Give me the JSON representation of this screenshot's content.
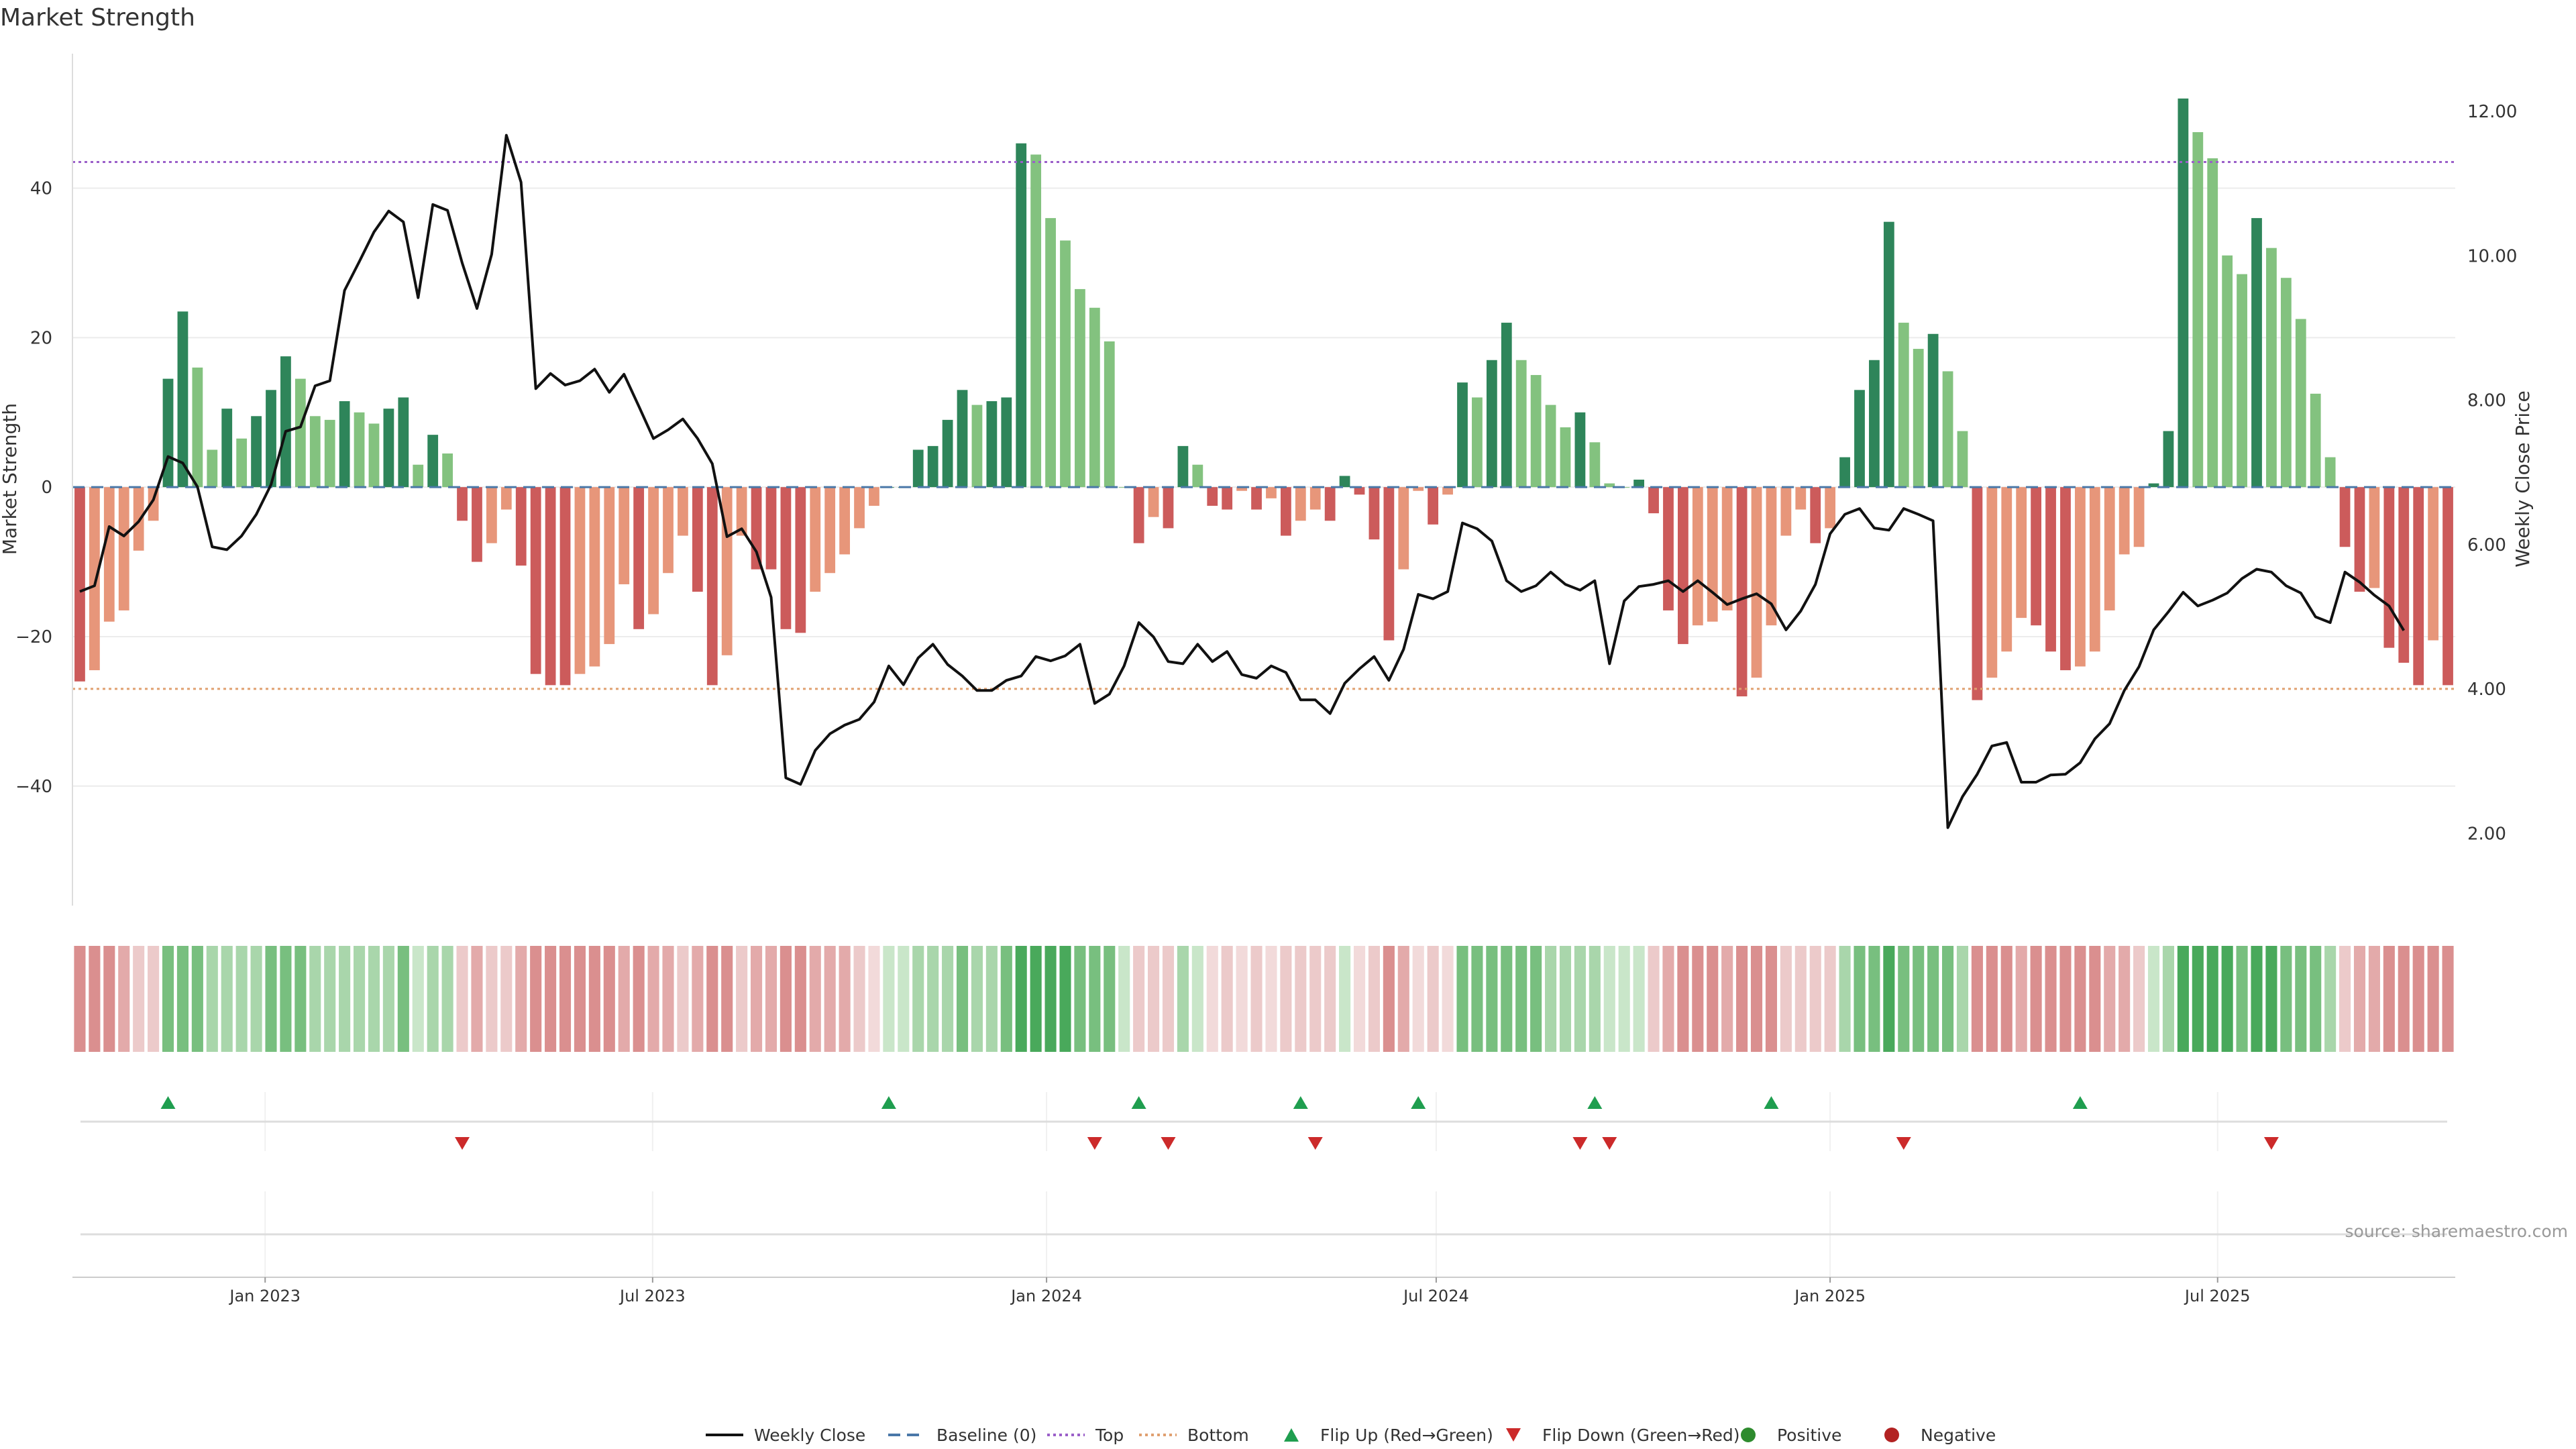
{
  "chart_data": {
    "type": "bar",
    "title": "Market Strength",
    "ylabel": "Market Strength",
    "y2label": "Weekly Close Price",
    "ylim": [
      -56,
      58
    ],
    "y2lim": [
      1.0,
      12.8
    ],
    "yticks": [
      -40,
      -20,
      0,
      20,
      40
    ],
    "y2ticks": [
      "2.00",
      "4.00",
      "6.00",
      "8.00",
      "10.00",
      "12.00"
    ],
    "x_start": "2022-10-03",
    "x_end": "2025-10-20",
    "x_tick_labels": [
      {
        "label": "Jan 2023",
        "date": "2023-01-01"
      },
      {
        "label": "Jul 2023",
        "date": "2023-07-01"
      },
      {
        "label": "Jan 2024",
        "date": "2024-01-01"
      },
      {
        "label": "Jul 2024",
        "date": "2024-07-01"
      },
      {
        "label": "Jan 2025",
        "date": "2025-01-01"
      },
      {
        "label": "Jul 2025",
        "date": "2025-07-01"
      }
    ],
    "top_level": 43.5,
    "bottom_level": -27,
    "strength_values": [
      -26,
      -24.5,
      -18,
      -16.5,
      -8.5,
      -4.5,
      14.5,
      23.5,
      16,
      5,
      10.5,
      6.5,
      9.5,
      13,
      17.5,
      14.5,
      9.5,
      9,
      11.5,
      10,
      8.5,
      10.5,
      12,
      3,
      7,
      4.5,
      -4.5,
      -10,
      -7.5,
      -3,
      -10.5,
      -25,
      -26.5,
      -26.5,
      -25,
      -24,
      -21,
      -13,
      -19,
      -17,
      -11.5,
      -6.5,
      -14,
      -26.5,
      -22.5,
      -6.5,
      -11,
      -11,
      -19,
      -19.5,
      -14,
      -11.5,
      -9,
      -5.5,
      -2.5,
      0,
      0,
      5,
      5.5,
      9,
      13,
      11,
      11.5,
      12,
      46,
      44.5,
      36,
      33,
      26.5,
      24,
      19.5,
      0,
      -7.5,
      -4,
      -5.5,
      5.5,
      3,
      -2.5,
      -3,
      -0.5,
      -3,
      -1.5,
      -6.5,
      -4.5,
      -3,
      -4.5,
      1.5,
      -1,
      -7,
      -20.5,
      -11,
      -0.5,
      -5,
      -1,
      14,
      12,
      17,
      22,
      17,
      15,
      11,
      8,
      10,
      6,
      0.5,
      0,
      1,
      -3.5,
      -16.5,
      -21,
      -18.5,
      -18,
      -16.5,
      -28,
      -25.5,
      -18.5,
      -6.5,
      -3,
      -7.5,
      -5.5,
      4,
      13,
      17,
      35.5,
      22,
      18.5,
      20.5,
      15.5,
      7.5,
      -28.5,
      -25.5,
      -22,
      -17.5,
      -18.5,
      -22,
      -24.5,
      -24,
      -22,
      -16.5,
      -9,
      -8,
      0.5,
      7.5,
      52,
      47.5,
      44,
      31,
      28.5,
      36,
      32,
      28,
      22.5,
      12.5,
      4,
      -8,
      -14,
      -13.5,
      -21.5,
      -23.5,
      -26.5,
      -20.5,
      -26.5
    ],
    "price_values": [
      5.35,
      5.43,
      6.25,
      6.12,
      6.32,
      6.62,
      7.22,
      7.13,
      6.8,
      5.97,
      5.93,
      6.12,
      6.42,
      6.83,
      7.57,
      7.63,
      8.2,
      8.27,
      9.52,
      9.92,
      10.33,
      10.62,
      10.47,
      9.42,
      10.71,
      10.63,
      9.9,
      9.27,
      10.02,
      11.67,
      11.02,
      8.16,
      8.37,
      8.21,
      8.27,
      8.43,
      8.11,
      8.36,
      7.92,
      7.47,
      7.59,
      7.74,
      7.47,
      7.12,
      6.11,
      6.22,
      5.9,
      5.27,
      2.77,
      2.68,
      3.15,
      3.38,
      3.5,
      3.58,
      3.82,
      4.32,
      4.06,
      4.43,
      4.62,
      4.34,
      4.18,
      3.98,
      3.98,
      4.12,
      4.18,
      4.45,
      4.39,
      4.46,
      4.62,
      3.8,
      3.93,
      4.32,
      4.92,
      4.72,
      4.38,
      4.35,
      4.62,
      4.38,
      4.52,
      4.2,
      4.15,
      4.32,
      4.23,
      3.85,
      3.85,
      3.66,
      4.08,
      4.28,
      4.45,
      4.12,
      4.55,
      5.31,
      5.25,
      5.35,
      6.3,
      6.22,
      6.05,
      5.5,
      5.35,
      5.43,
      5.62,
      5.45,
      5.37,
      5.5,
      4.35,
      5.22,
      5.42,
      5.45,
      5.5,
      5.35,
      5.5,
      5.34,
      5.17,
      5.25,
      5.32,
      5.18,
      4.82,
      5.08,
      5.45,
      6.15,
      6.42,
      6.5,
      6.23,
      6.2,
      6.5,
      6.42,
      6.33,
      2.08,
      2.51,
      2.82,
      3.21,
      3.26,
      2.71,
      2.71,
      2.81,
      2.82,
      2.98,
      3.31,
      3.52,
      3.98,
      4.31,
      4.82,
      5.07,
      5.34,
      5.15,
      5.23,
      5.33,
      5.53,
      5.66,
      5.62,
      5.43,
      5.33,
      5.0,
      4.92,
      5.62,
      5.48,
      5.3,
      5.15,
      4.81
    ]
  },
  "strip_colors": {
    "green_strong": "#49a95b",
    "green_mid": "#78bf7f",
    "green_light": "#a9d6ab",
    "green_pale": "#c9e6c9",
    "red_strong": "#da8f8f",
    "red_mid": "#e3aaaa",
    "red_light": "#eccaca",
    "red_pale": "#f2dada"
  },
  "colors": {
    "bar_green_dark": "#2e855a",
    "bar_green_light": "#83c27f",
    "bar_red_dark": "#cc5b5b",
    "bar_orange_light": "#e7967a",
    "price_line": "#111111",
    "baseline": "#4a78a8",
    "top_line": "#9b5fc9",
    "bottom_line": "#e0a070",
    "flip_up": "#1f9e4f",
    "flip_down": "#cc2a2a",
    "positive": "#2e8b2e",
    "negative": "#b22222"
  },
  "flip_up_indices": [
    6,
    55,
    72,
    83,
    91,
    103,
    115,
    136
  ],
  "flip_down_indices": [
    26,
    69,
    74,
    84,
    102,
    104,
    124,
    149
  ],
  "legend": [
    {
      "label": "Weekly Close",
      "kind": "line"
    },
    {
      "label": "Baseline (0)",
      "kind": "dash"
    },
    {
      "label": "Top",
      "kind": "dot-top"
    },
    {
      "label": "Bottom",
      "kind": "dot-bottom"
    },
    {
      "label": "Flip Up (Red→Green)",
      "kind": "tri-up"
    },
    {
      "label": "Flip Down (Green→Red)",
      "kind": "tri-down"
    },
    {
      "label": "Positive",
      "kind": "dot-pos"
    },
    {
      "label": "Negative",
      "kind": "dot-neg"
    }
  ],
  "source_label": "source: sharemaestro.com"
}
